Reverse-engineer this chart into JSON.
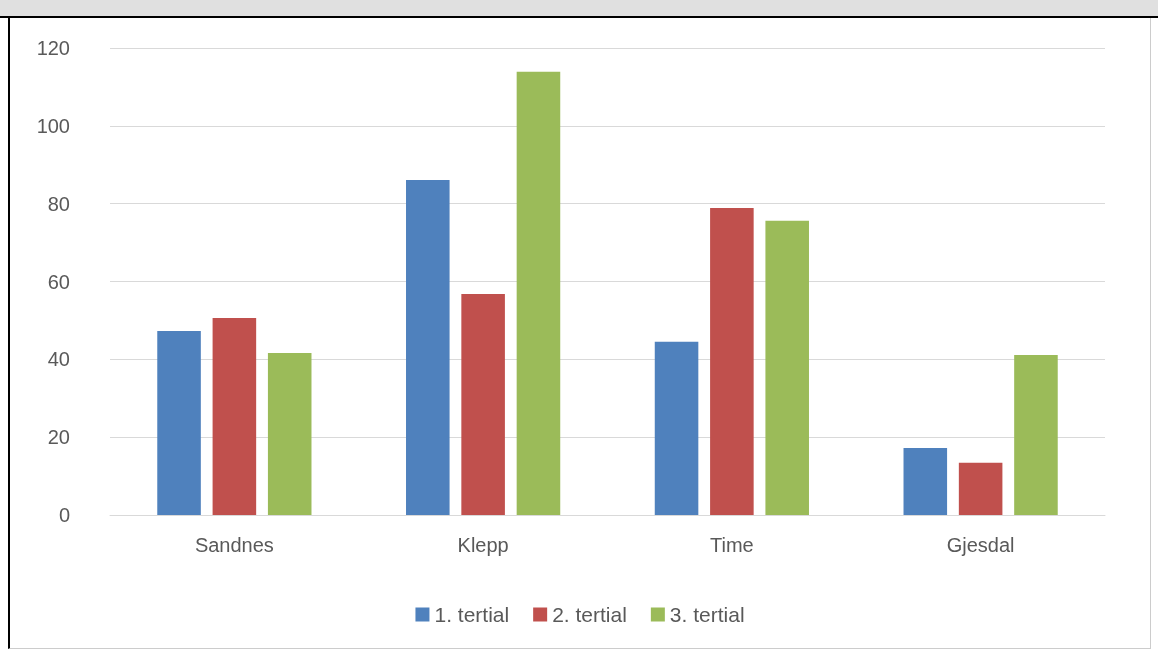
{
  "chart_data": {
    "type": "bar",
    "categories": [
      "Sandnes",
      "Klepp",
      "Time",
      "Gjesdal"
    ],
    "series": [
      {
        "name": "1. tertial",
        "color": "#4f81bd",
        "values": [
          47.3,
          86.1,
          44.5,
          17.2
        ]
      },
      {
        "name": "2. tertial",
        "color": "#c0504d",
        "values": [
          50.6,
          56.8,
          78.9,
          13.4
        ]
      },
      {
        "name": "3. tertial",
        "color": "#9bbb59",
        "values": [
          41.6,
          113.9,
          75.6,
          41.1
        ]
      }
    ],
    "ylim": [
      0,
      120
    ],
    "yticks": [
      0,
      20,
      40,
      60,
      80,
      100,
      120
    ],
    "grid": "y",
    "legend": "bottom"
  }
}
